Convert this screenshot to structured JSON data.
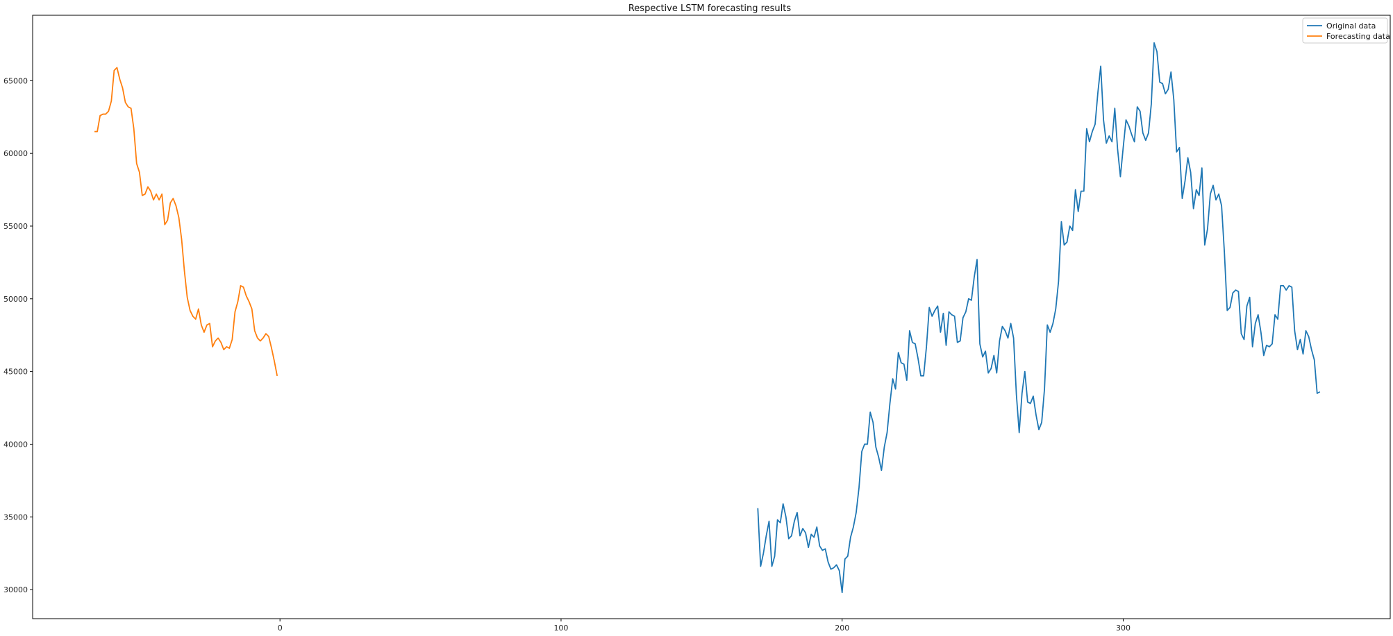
{
  "chart_data": {
    "type": "line",
    "title": "Respective LSTM forecasting results",
    "xlabel": "",
    "ylabel": "",
    "xlim": [
      -88,
      395
    ],
    "ylim": [
      28000,
      69500
    ],
    "x_ticks": [
      0,
      100,
      200,
      300
    ],
    "y_ticks": [
      30000,
      35000,
      40000,
      45000,
      50000,
      55000,
      60000,
      65000
    ],
    "grid": false,
    "legend_position": "top-right",
    "series": [
      {
        "name": "Original data",
        "color": "#1f77b4",
        "x_start": 170,
        "x_step": 1,
        "values": [
          35600,
          31600,
          32500,
          33700,
          34700,
          31600,
          32300,
          34800,
          34600,
          35900,
          35000,
          33500,
          33700,
          34700,
          35300,
          33700,
          34200,
          33900,
          32900,
          33800,
          33600,
          34300,
          33000,
          32700,
          32800,
          31900,
          31400,
          31500,
          31700,
          31300,
          29800,
          32100,
          32300,
          33600,
          34300,
          35300,
          37000,
          39500,
          40000,
          40000,
          42200,
          41500,
          39800,
          39100,
          38200,
          39800,
          40800,
          42800,
          44500,
          43800,
          46300,
          45600,
          45500,
          44400,
          47800,
          47000,
          46900,
          45900,
          44700,
          44700,
          46700,
          49400,
          48800,
          49200,
          49500,
          47700,
          49000,
          46800,
          49100,
          48900,
          48800,
          47000,
          47100,
          48700,
          49100,
          50000,
          49900,
          51500,
          52700,
          46900,
          46000,
          46400,
          44900,
          45200,
          46100,
          44900,
          47100,
          48100,
          47800,
          47300,
          48300,
          47300,
          43400,
          40800,
          43500,
          45000,
          42900,
          42800,
          43300,
          42000,
          41000,
          41500,
          43800,
          48200,
          47700,
          48300,
          49300,
          51200,
          55300,
          53700,
          53900,
          55000,
          54700,
          57500,
          56000,
          57400,
          57400,
          61700,
          60800,
          61500,
          62000,
          64200,
          66000,
          62300,
          60700,
          61200,
          60800,
          63100,
          60300,
          58400,
          60400,
          62300,
          61900,
          61300,
          60800,
          63200,
          62900,
          61400,
          60900,
          61400,
          63400,
          67600,
          67000,
          64900,
          64800,
          64100,
          64400,
          65600,
          63700,
          60100,
          60400,
          56900,
          58100,
          59700,
          58700,
          56200,
          57500,
          57100,
          59000,
          53700,
          54800,
          57200,
          57800,
          56800,
          57200,
          56400,
          53200,
          49200,
          49400,
          50400,
          50600,
          50500,
          47600,
          47200,
          49500,
          50100,
          46700,
          48300,
          48900,
          47700,
          46100,
          46800,
          46700,
          46900,
          48900,
          48600,
          50900,
          50900,
          50600,
          50900,
          50800,
          47800,
          46500,
          47200,
          46200,
          47800,
          47400,
          46500,
          45800,
          43500,
          43600
        ]
      },
      {
        "name": "Forecasting data",
        "color": "#ff7f0e",
        "x_start": -66,
        "x_step": 1,
        "values": [
          61500,
          61500,
          62600,
          62700,
          62700,
          62900,
          63600,
          65700,
          65900,
          65100,
          64500,
          63500,
          63200,
          63100,
          61700,
          59300,
          58700,
          57100,
          57200,
          57700,
          57400,
          56800,
          57200,
          56800,
          57200,
          55100,
          55400,
          56600,
          56900,
          56400,
          55600,
          54100,
          51900,
          50100,
          49200,
          48800,
          48600,
          49300,
          48200,
          47700,
          48200,
          48300,
          46700,
          47100,
          47300,
          47000,
          46500,
          46700,
          46600,
          47200,
          49100,
          49800,
          50900,
          50800,
          50200,
          49800,
          49300,
          47800,
          47300,
          47100,
          47300,
          47600,
          47400,
          46600,
          45700,
          44700
        ]
      }
    ]
  }
}
